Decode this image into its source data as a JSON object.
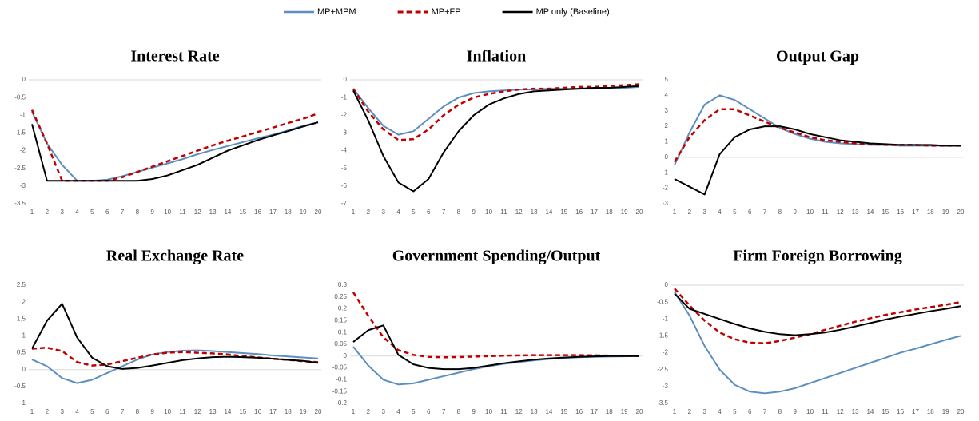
{
  "chart_data": [
    {
      "type": "line",
      "title": "Interest Rate",
      "categories": [
        "1",
        "2",
        "3",
        "4",
        "5",
        "6",
        "7",
        "8",
        "9",
        "10",
        "11",
        "12",
        "13",
        "14",
        "15",
        "16",
        "17",
        "18",
        "19",
        "20"
      ],
      "ylim": [
        -3.5,
        0
      ],
      "yticks": [
        0,
        -0.5,
        -1,
        -1.5,
        -2,
        -2.5,
        -3,
        -3.5
      ],
      "grid": false,
      "series": [
        {
          "name": "MP+MPM",
          "color": "#5b8ec1",
          "dash": false,
          "values": [
            -0.9,
            -1.8,
            -2.4,
            -2.85,
            -2.85,
            -2.82,
            -2.72,
            -2.6,
            -2.48,
            -2.36,
            -2.24,
            -2.1,
            -1.98,
            -1.87,
            -1.76,
            -1.65,
            -1.55,
            -1.43,
            -1.3,
            -1.2
          ]
        },
        {
          "name": "MP+FP",
          "color": "#c00000",
          "dash": true,
          "values": [
            -0.85,
            -1.8,
            -2.85,
            -2.85,
            -2.85,
            -2.85,
            -2.75,
            -2.6,
            -2.45,
            -2.3,
            -2.15,
            -2.0,
            -1.85,
            -1.72,
            -1.6,
            -1.47,
            -1.35,
            -1.22,
            -1.1,
            -0.95
          ]
        },
        {
          "name": "MP only (Baseline)",
          "color": "#000000",
          "dash": false,
          "values": [
            -1.25,
            -2.85,
            -2.85,
            -2.85,
            -2.85,
            -2.85,
            -2.85,
            -2.85,
            -2.8,
            -2.7,
            -2.55,
            -2.4,
            -2.2,
            -2.0,
            -1.85,
            -1.7,
            -1.57,
            -1.45,
            -1.32,
            -1.2
          ]
        }
      ]
    },
    {
      "type": "line",
      "title": "Inflation",
      "categories": [
        "1",
        "2",
        "3",
        "4",
        "5",
        "6",
        "7",
        "8",
        "9",
        "10",
        "11",
        "12",
        "13",
        "14",
        "15",
        "16",
        "17",
        "18",
        "19",
        "20"
      ],
      "ylim": [
        -7,
        0
      ],
      "yticks": [
        0,
        -1,
        -2,
        -3,
        -4,
        -5,
        -6,
        -7
      ],
      "grid": false,
      "series": [
        {
          "color": "#5b8ec1",
          "dash": false,
          "values": [
            -0.5,
            -1.6,
            -2.6,
            -3.1,
            -2.9,
            -2.2,
            -1.5,
            -1.0,
            -0.75,
            -0.65,
            -0.6,
            -0.55,
            -0.55,
            -0.5,
            -0.5,
            -0.5,
            -0.5,
            -0.45,
            -0.45,
            -0.4
          ]
        },
        {
          "color": "#c00000",
          "dash": true,
          "values": [
            -0.5,
            -1.8,
            -2.8,
            -3.4,
            -3.35,
            -2.8,
            -2.0,
            -1.4,
            -1.0,
            -0.8,
            -0.65,
            -0.55,
            -0.5,
            -0.5,
            -0.45,
            -0.4,
            -0.4,
            -0.35,
            -0.3,
            -0.25
          ]
        },
        {
          "color": "#000000",
          "dash": false,
          "values": [
            -0.6,
            -2.3,
            -4.3,
            -5.8,
            -6.3,
            -5.6,
            -4.1,
            -2.9,
            -2.0,
            -1.4,
            -1.05,
            -0.8,
            -0.65,
            -0.6,
            -0.55,
            -0.5,
            -0.45,
            -0.45,
            -0.4,
            -0.35
          ]
        }
      ]
    },
    {
      "type": "line",
      "title": "Output Gap",
      "categories": [
        "1",
        "2",
        "3",
        "4",
        "5",
        "6",
        "7",
        "8",
        "9",
        "10",
        "11",
        "12",
        "13",
        "14",
        "15",
        "16",
        "17",
        "18",
        "19",
        "20"
      ],
      "ylim": [
        -3,
        5
      ],
      "yticks": [
        5,
        4,
        3,
        2,
        1,
        0,
        -1,
        -2,
        -3
      ],
      "grid": false,
      "series": [
        {
          "color": "#5b8ec1",
          "dash": false,
          "values": [
            -0.5,
            1.6,
            3.4,
            4.0,
            3.7,
            3.1,
            2.5,
            1.9,
            1.5,
            1.2,
            1.0,
            0.9,
            0.85,
            0.8,
            0.8,
            0.75,
            0.75,
            0.75,
            0.75,
            0.75
          ]
        },
        {
          "color": "#c00000",
          "dash": true,
          "values": [
            -0.3,
            1.3,
            2.4,
            3.1,
            3.1,
            2.7,
            2.3,
            1.9,
            1.6,
            1.3,
            1.1,
            1.0,
            0.9,
            0.85,
            0.8,
            0.8,
            0.8,
            0.75,
            0.75,
            0.75
          ]
        },
        {
          "color": "#000000",
          "dash": false,
          "values": [
            -1.4,
            -1.9,
            -2.4,
            0.2,
            1.3,
            1.8,
            2.0,
            2.0,
            1.8,
            1.5,
            1.3,
            1.1,
            1.0,
            0.9,
            0.85,
            0.8,
            0.8,
            0.8,
            0.75,
            0.75
          ]
        }
      ]
    },
    {
      "type": "line",
      "title": "Real Exchange Rate",
      "categories": [
        "1",
        "2",
        "3",
        "4",
        "5",
        "6",
        "7",
        "8",
        "9",
        "10",
        "11",
        "12",
        "13",
        "14",
        "15",
        "16",
        "17",
        "18",
        "19",
        "20"
      ],
      "ylim": [
        -1,
        2.5
      ],
      "yticks": [
        2.5,
        2,
        1.5,
        1,
        0.5,
        0,
        -0.5,
        -1
      ],
      "grid": false,
      "series": [
        {
          "color": "#5b8ec1",
          "dash": false,
          "values": [
            0.3,
            0.1,
            -0.25,
            -0.4,
            -0.3,
            -0.1,
            0.1,
            0.3,
            0.45,
            0.52,
            0.56,
            0.57,
            0.55,
            0.52,
            0.49,
            0.46,
            0.42,
            0.39,
            0.36,
            0.33
          ]
        },
        {
          "color": "#c00000",
          "dash": true,
          "values": [
            0.62,
            0.65,
            0.55,
            0.22,
            0.12,
            0.15,
            0.25,
            0.35,
            0.45,
            0.5,
            0.52,
            0.5,
            0.48,
            0.45,
            0.4,
            0.36,
            0.32,
            0.29,
            0.25,
            0.22
          ]
        },
        {
          "color": "#000000",
          "dash": false,
          "values": [
            0.62,
            1.45,
            1.95,
            0.95,
            0.35,
            0.1,
            0.02,
            0.05,
            0.12,
            0.2,
            0.28,
            0.33,
            0.37,
            0.38,
            0.37,
            0.35,
            0.32,
            0.29,
            0.26,
            0.2
          ]
        }
      ]
    },
    {
      "type": "line",
      "title": "Government Spending/Output",
      "categories": [
        "1",
        "2",
        "3",
        "4",
        "5",
        "6",
        "7",
        "8",
        "9",
        "10",
        "11",
        "12",
        "13",
        "14",
        "15",
        "16",
        "17",
        "18",
        "19",
        "20"
      ],
      "ylim": [
        -0.2,
        0.3
      ],
      "yticks": [
        0.3,
        0.25,
        0.2,
        0.15,
        0.1,
        0.05,
        0,
        -0.05,
        -0.1,
        -0.15,
        -0.2
      ],
      "grid": false,
      "series": [
        {
          "color": "#5b8ec1",
          "dash": false,
          "values": [
            0.04,
            -0.04,
            -0.1,
            -0.12,
            -0.115,
            -0.1,
            -0.085,
            -0.07,
            -0.055,
            -0.043,
            -0.033,
            -0.025,
            -0.018,
            -0.012,
            -0.008,
            -0.005,
            -0.003,
            -0.002,
            -0.001,
            0.0
          ]
        },
        {
          "color": "#c00000",
          "dash": true,
          "values": [
            0.27,
            0.17,
            0.08,
            0.025,
            0.005,
            -0.003,
            -0.005,
            -0.004,
            -0.002,
            0.0,
            0.002,
            0.003,
            0.004,
            0.004,
            0.004,
            0.004,
            0.003,
            0.002,
            0.001,
            0.0
          ]
        },
        {
          "color": "#000000",
          "dash": false,
          "values": [
            0.06,
            0.11,
            0.13,
            0.005,
            -0.035,
            -0.05,
            -0.055,
            -0.055,
            -0.05,
            -0.04,
            -0.03,
            -0.022,
            -0.015,
            -0.01,
            -0.006,
            -0.003,
            -0.001,
            0.0,
            0.0,
            0.0
          ]
        }
      ]
    },
    {
      "type": "line",
      "title": "Firm Foreign Borrowing",
      "categories": [
        "1",
        "2",
        "3",
        "4",
        "5",
        "6",
        "7",
        "8",
        "9",
        "10",
        "11",
        "12",
        "13",
        "14",
        "15",
        "16",
        "17",
        "18",
        "19",
        "20"
      ],
      "ylim": [
        -3.5,
        0
      ],
      "yticks": [
        0,
        -0.5,
        -1,
        -1.5,
        -2,
        -2.5,
        -3,
        -3.5
      ],
      "grid": false,
      "series": [
        {
          "color": "#5b8ec1",
          "dash": false,
          "values": [
            -0.2,
            -0.9,
            -1.8,
            -2.5,
            -2.95,
            -3.15,
            -3.2,
            -3.15,
            -3.05,
            -2.9,
            -2.75,
            -2.6,
            -2.45,
            -2.3,
            -2.15,
            -2.0,
            -1.88,
            -1.75,
            -1.62,
            -1.5
          ]
        },
        {
          "color": "#c00000",
          "dash": true,
          "values": [
            -0.1,
            -0.6,
            -1.05,
            -1.4,
            -1.6,
            -1.7,
            -1.72,
            -1.65,
            -1.55,
            -1.45,
            -1.32,
            -1.2,
            -1.08,
            -0.98,
            -0.88,
            -0.8,
            -0.72,
            -0.65,
            -0.58,
            -0.5
          ]
        },
        {
          "color": "#000000",
          "dash": false,
          "values": [
            -0.25,
            -0.7,
            -0.85,
            -1.0,
            -1.15,
            -1.28,
            -1.38,
            -1.45,
            -1.48,
            -1.45,
            -1.4,
            -1.32,
            -1.22,
            -1.12,
            -1.02,
            -0.93,
            -0.85,
            -0.77,
            -0.7,
            -0.62
          ]
        }
      ]
    }
  ]
}
